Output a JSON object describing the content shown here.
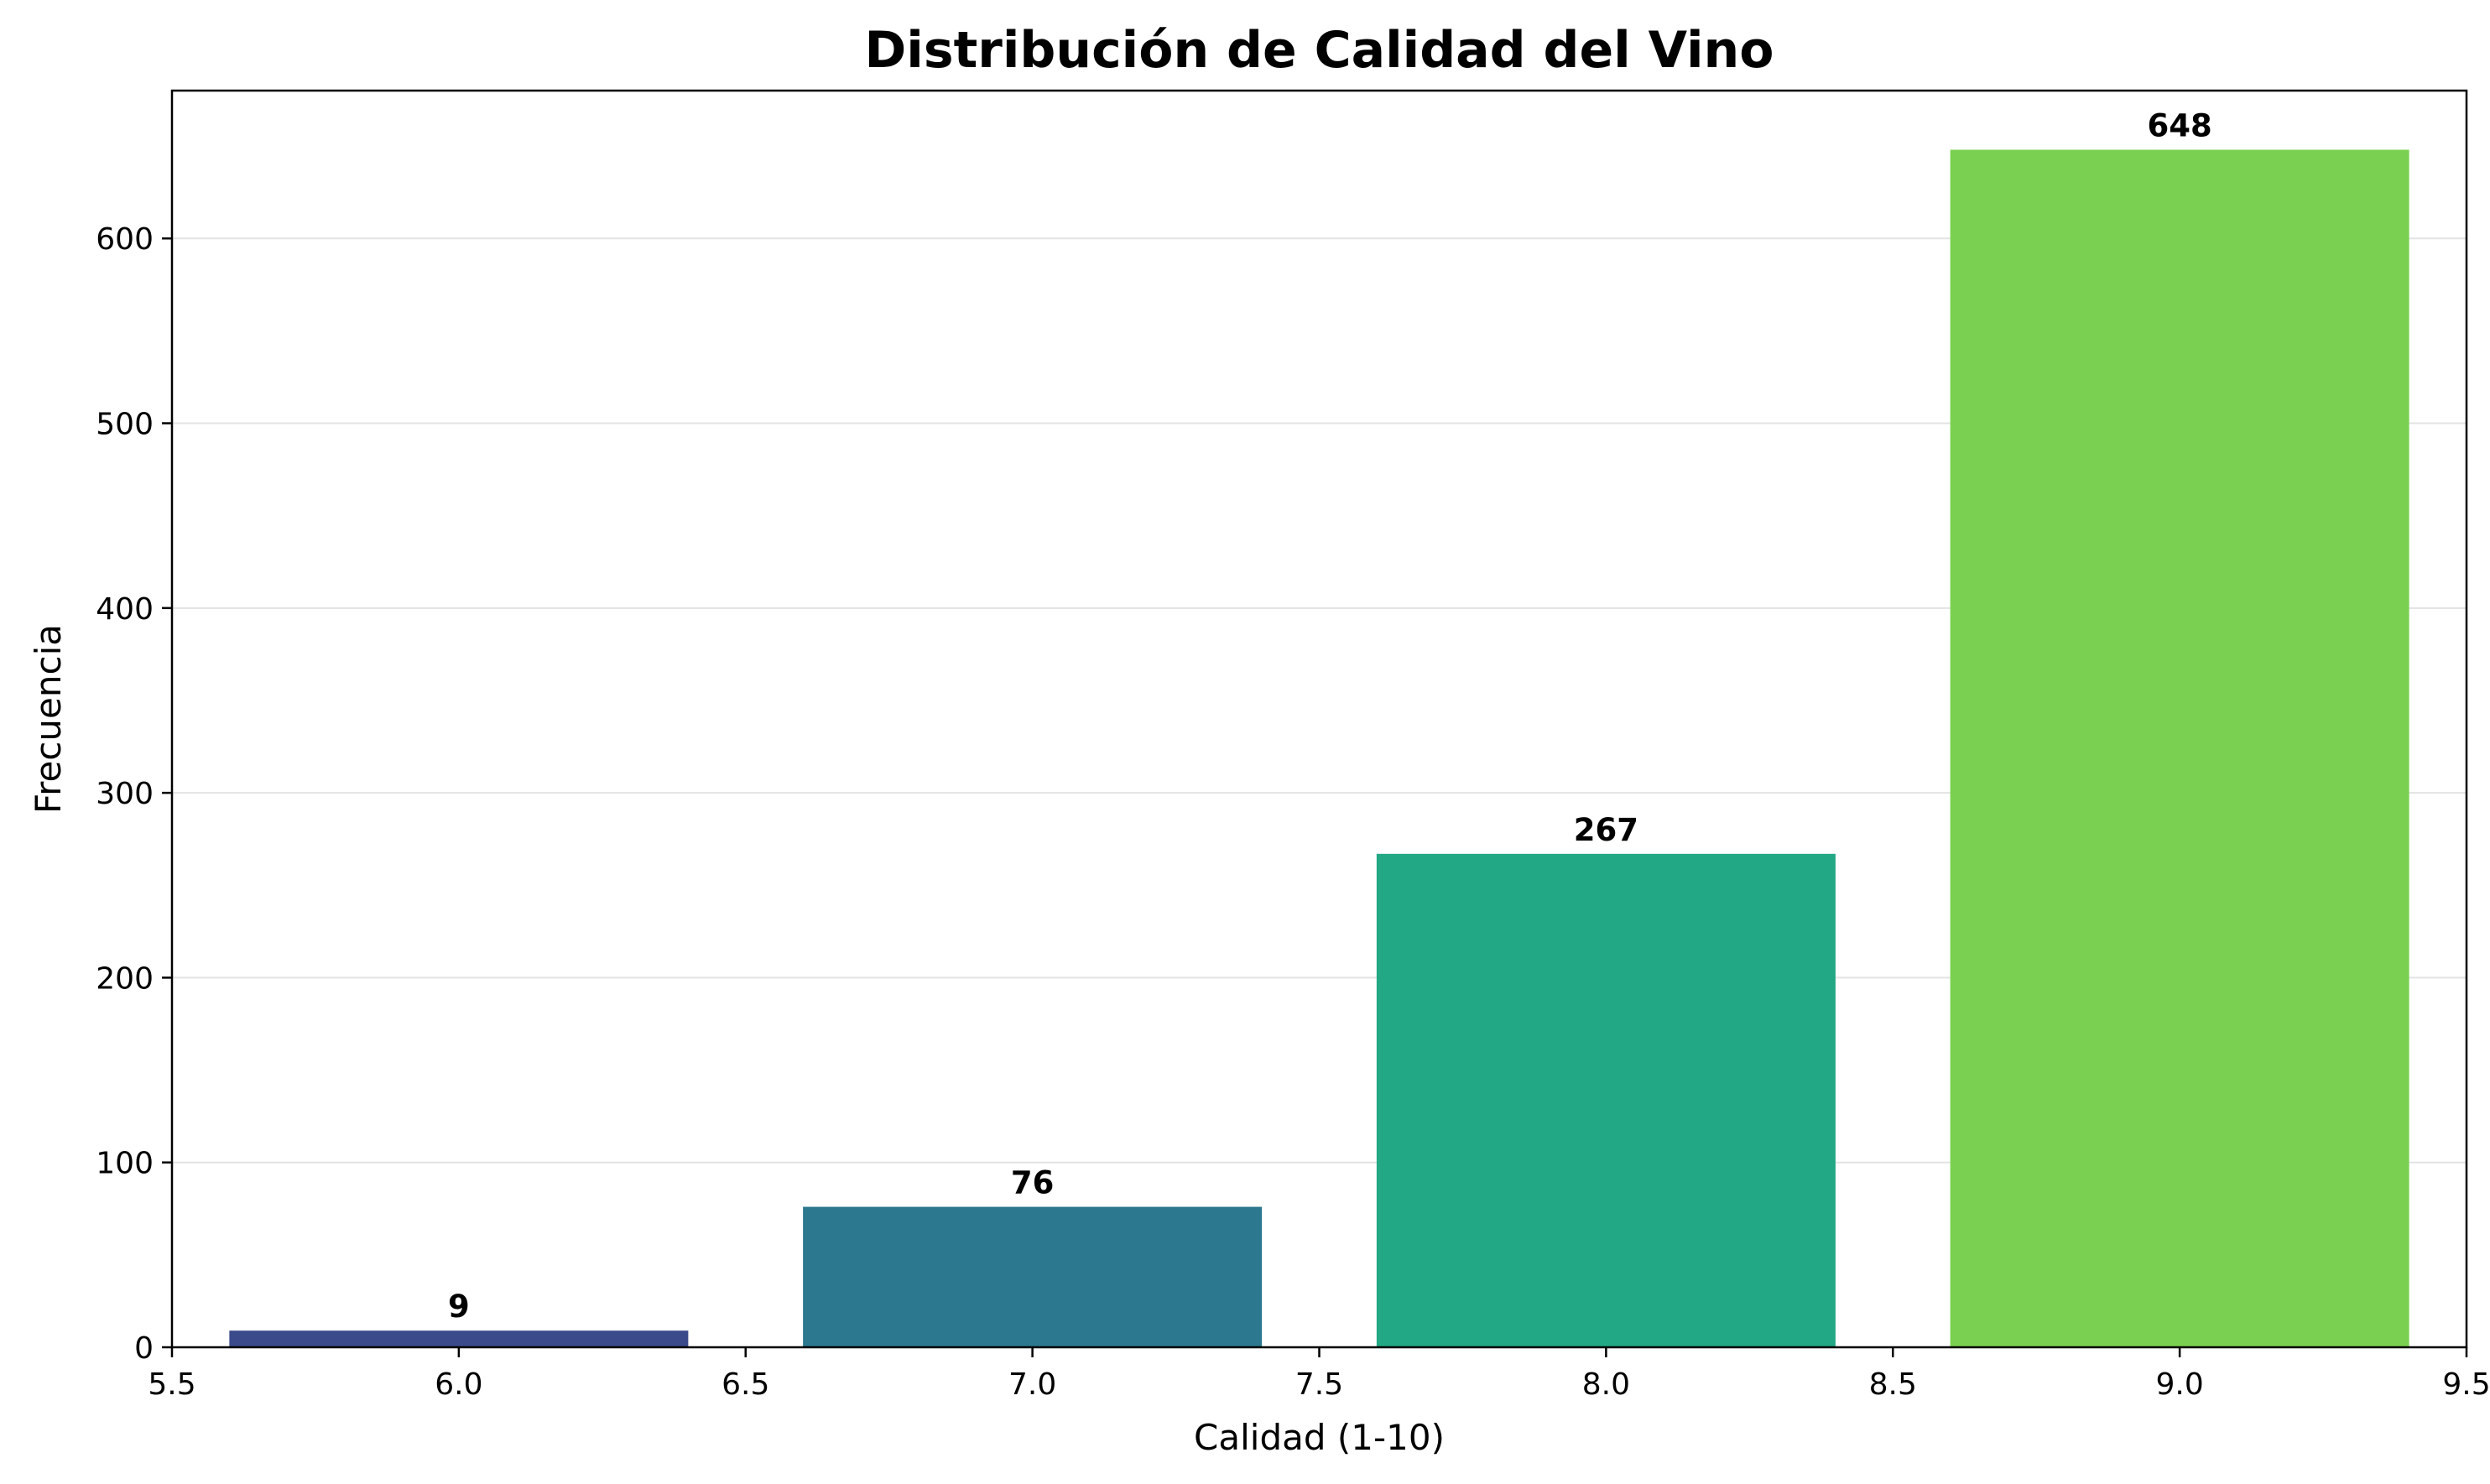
{
  "chart_data": {
    "type": "bar",
    "title": "Distribución de Calidad del Vino",
    "xlabel": "Calidad (1-10)",
    "ylabel": "Frecuencia",
    "x": [
      6,
      7,
      8,
      9
    ],
    "values": [
      9,
      76,
      267,
      648
    ],
    "bar_width": 0.8,
    "data_labels": [
      "9",
      "76",
      "267",
      "648"
    ],
    "colors": [
      "#3b4a8a",
      "#2c788e",
      "#22a884",
      "#7ad151"
    ],
    "xlim": [
      5.5,
      9.5
    ],
    "ylim": [
      0,
      680
    ],
    "x_ticks": [
      5.5,
      6.0,
      6.5,
      7.0,
      7.5,
      8.0,
      8.5,
      9.0,
      9.5
    ],
    "x_tick_labels": [
      "5.5",
      "6.0",
      "6.5",
      "7.0",
      "7.5",
      "8.0",
      "8.5",
      "9.0",
      "9.5"
    ],
    "y_ticks": [
      0,
      100,
      200,
      300,
      400,
      500,
      600
    ],
    "y_tick_labels": [
      "0",
      "100",
      "200",
      "300",
      "400",
      "500",
      "600"
    ],
    "grid": "horizontal",
    "legend": "none"
  }
}
